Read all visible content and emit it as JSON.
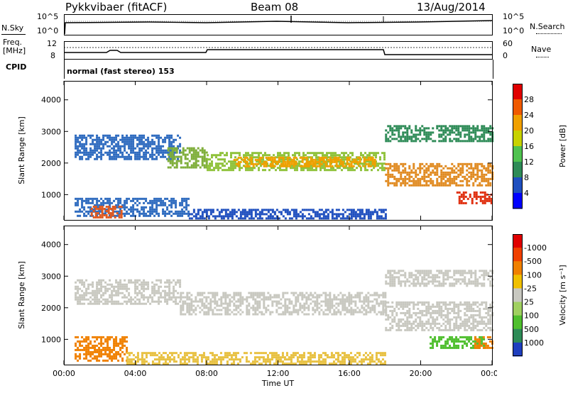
{
  "header": {
    "station": "Pykkvibaer (fitACF)",
    "beam": "Beam 08",
    "date": "13/Aug/2014"
  },
  "top_panel": {
    "left_label": "N.Sky",
    "right_label": "N.Search",
    "left_ticks": [
      "10^5",
      "10^0"
    ],
    "right_ticks": [
      "10^5",
      "10^0"
    ]
  },
  "freq_panel": {
    "left_label_1": "Freq.",
    "left_label_2": "[MHz]",
    "left_ticks": [
      "12",
      "8"
    ],
    "right_ticks": [
      "60",
      "0"
    ],
    "right_label": "Nave"
  },
  "cpid": {
    "label": "CPID",
    "text": "normal (fast stereo) 153"
  },
  "chart_data": [
    {
      "type": "heatmap",
      "name": "power",
      "ylabel": "Slant Range [km]",
      "yticks": [
        1000,
        2000,
        3000,
        4000
      ],
      "ylim": [
        200,
        4600
      ],
      "xlim": [
        0,
        24
      ],
      "colorbar": {
        "label": "Power [dB]",
        "ticks": [
          "4",
          "8",
          "12",
          "16",
          "20",
          "24",
          "28"
        ],
        "colors": [
          "#0000ff",
          "#1f4fbf",
          "#2e8b57",
          "#4fc24f",
          "#c8d200",
          "#f0a000",
          "#f05a00",
          "#e00000"
        ]
      },
      "bands": [
        {
          "x0": 0.6,
          "x1": 6.5,
          "y0": 2100,
          "y1": 2900,
          "color": "#2e6bbf"
        },
        {
          "x0": 5.8,
          "x1": 8.0,
          "y0": 1850,
          "y1": 2500,
          "color": "#7fae3a"
        },
        {
          "x0": 8.0,
          "x1": 18.0,
          "y0": 1800,
          "y1": 2350,
          "color": "#8fc23a"
        },
        {
          "x0": 9.5,
          "x1": 17.5,
          "y0": 1900,
          "y1": 2200,
          "color": "#f0a000"
        },
        {
          "x0": 18.0,
          "x1": 24.0,
          "y0": 1300,
          "y1": 2000,
          "color": "#e08a20"
        },
        {
          "x0": 18.0,
          "x1": 24.0,
          "y0": 2700,
          "y1": 3200,
          "color": "#2e8b57"
        },
        {
          "x0": 22.0,
          "x1": 24.0,
          "y0": 700,
          "y1": 1100,
          "color": "#e03010"
        },
        {
          "x0": 0.6,
          "x1": 7.0,
          "y0": 300,
          "y1": 900,
          "color": "#2e6bbf"
        },
        {
          "x0": 1.5,
          "x1": 3.2,
          "y0": 300,
          "y1": 650,
          "color": "#e05a20"
        },
        {
          "x0": 7.0,
          "x1": 18.0,
          "y0": 250,
          "y1": 550,
          "color": "#1f4fbf"
        }
      ]
    },
    {
      "type": "heatmap",
      "name": "velocity",
      "ylabel": "Slant Range [km]",
      "yticks": [
        1000,
        2000,
        3000,
        4000
      ],
      "ylim": [
        200,
        4600
      ],
      "xlim": [
        0,
        24
      ],
      "xticks": [
        "00:00",
        "04:00",
        "08:00",
        "12:00",
        "16:00",
        "20:00",
        "00:00"
      ],
      "xlabel": "Time UT",
      "colorbar": {
        "label": "Velocity [m s⁻¹]",
        "ticks": [
          "1000",
          "500",
          "100",
          "25",
          "-25",
          "-100",
          "-500",
          "-1000"
        ],
        "colors": [
          "#1f3fbf",
          "#2e8b57",
          "#4fbf2e",
          "#a0d060",
          "#c8c8c0",
          "#f0c000",
          "#f08000",
          "#f04000",
          "#e00000"
        ]
      },
      "bands": [
        {
          "x0": 0.6,
          "x1": 6.5,
          "y0": 2100,
          "y1": 2900,
          "color": "#c8c8c0"
        },
        {
          "x0": 6.5,
          "x1": 18.0,
          "y0": 1800,
          "y1": 2500,
          "color": "#c8c8c0"
        },
        {
          "x0": 18.0,
          "x1": 24.0,
          "y0": 1300,
          "y1": 2200,
          "color": "#c8c8c0"
        },
        {
          "x0": 18.0,
          "x1": 24.0,
          "y0": 2700,
          "y1": 3200,
          "color": "#c8c8c0"
        },
        {
          "x0": 20.5,
          "x1": 23.5,
          "y0": 700,
          "y1": 1100,
          "color": "#4fbf2e"
        },
        {
          "x0": 23.0,
          "x1": 24.0,
          "y0": 700,
          "y1": 1100,
          "color": "#f08000"
        },
        {
          "x0": 0.6,
          "x1": 3.5,
          "y0": 300,
          "y1": 1100,
          "color": "#f08000"
        },
        {
          "x0": 3.5,
          "x1": 18.0,
          "y0": 250,
          "y1": 600,
          "color": "#e8c040"
        }
      ]
    }
  ]
}
